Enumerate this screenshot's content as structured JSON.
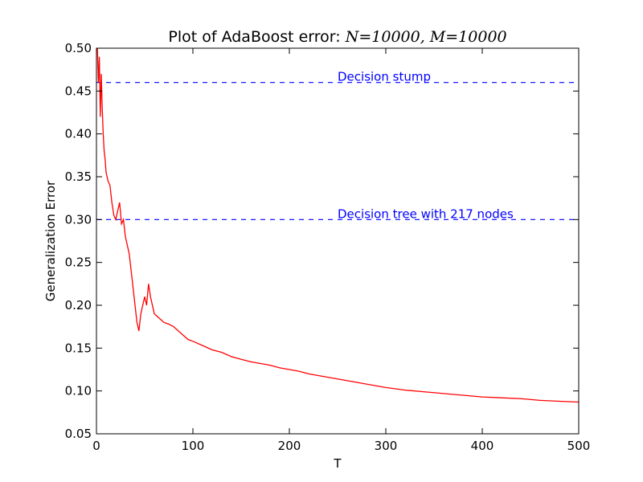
{
  "chart_data": {
    "type": "line",
    "title": "Plot of AdaBoost error: ",
    "title_math": "N=10000, M=10000",
    "xlabel": "T",
    "ylabel": "Generalization Error",
    "xlim": [
      0,
      500
    ],
    "ylim": [
      0.05,
      0.5
    ],
    "xticks": [
      0,
      100,
      200,
      300,
      400,
      500
    ],
    "xtick_labels": [
      "0",
      "100",
      "200",
      "300",
      "400",
      "500"
    ],
    "yticks": [
      0.05,
      0.1,
      0.15,
      0.2,
      0.25,
      0.3,
      0.35,
      0.4,
      0.45,
      0.5
    ],
    "ytick_labels": [
      "0.05",
      "0.10",
      "0.15",
      "0.20",
      "0.25",
      "0.30",
      "0.35",
      "0.40",
      "0.45",
      "0.50"
    ],
    "grid": false,
    "reference_lines": [
      {
        "name": "Decision stump",
        "y": 0.46,
        "color": "#0000ff",
        "style": "dashed",
        "label_x": 250
      },
      {
        "name": "Decision tree with 217 nodes",
        "y": 0.3,
        "color": "#0000ff",
        "style": "dashed",
        "label_x": 250
      }
    ],
    "series": [
      {
        "color": "#ff0000",
        "points": [
          [
            1,
            0.5
          ],
          [
            2,
            0.46
          ],
          [
            3,
            0.49
          ],
          [
            4,
            0.42
          ],
          [
            5,
            0.47
          ],
          [
            6,
            0.43
          ],
          [
            7,
            0.4
          ],
          [
            8,
            0.38
          ],
          [
            9,
            0.37
          ],
          [
            10,
            0.355
          ],
          [
            11,
            0.35
          ],
          [
            12,
            0.345
          ],
          [
            14,
            0.34
          ],
          [
            16,
            0.32
          ],
          [
            18,
            0.305
          ],
          [
            20,
            0.3
          ],
          [
            22,
            0.31
          ],
          [
            24,
            0.32
          ],
          [
            26,
            0.295
          ],
          [
            28,
            0.3
          ],
          [
            30,
            0.28
          ],
          [
            32,
            0.27
          ],
          [
            34,
            0.26
          ],
          [
            36,
            0.24
          ],
          [
            38,
            0.22
          ],
          [
            40,
            0.2
          ],
          [
            42,
            0.18
          ],
          [
            44,
            0.17
          ],
          [
            46,
            0.19
          ],
          [
            48,
            0.2
          ],
          [
            50,
            0.21
          ],
          [
            52,
            0.2
          ],
          [
            54,
            0.225
          ],
          [
            56,
            0.21
          ],
          [
            58,
            0.2
          ],
          [
            60,
            0.19
          ],
          [
            65,
            0.185
          ],
          [
            70,
            0.18
          ],
          [
            75,
            0.178
          ],
          [
            80,
            0.175
          ],
          [
            85,
            0.17
          ],
          [
            90,
            0.165
          ],
          [
            95,
            0.16
          ],
          [
            100,
            0.158
          ],
          [
            110,
            0.153
          ],
          [
            120,
            0.148
          ],
          [
            130,
            0.145
          ],
          [
            140,
            0.14
          ],
          [
            150,
            0.137
          ],
          [
            160,
            0.134
          ],
          [
            170,
            0.132
          ],
          [
            180,
            0.13
          ],
          [
            190,
            0.127
          ],
          [
            200,
            0.125
          ],
          [
            210,
            0.123
          ],
          [
            220,
            0.12
          ],
          [
            230,
            0.118
          ],
          [
            240,
            0.116
          ],
          [
            250,
            0.114
          ],
          [
            260,
            0.112
          ],
          [
            270,
            0.11
          ],
          [
            280,
            0.108
          ],
          [
            290,
            0.106
          ],
          [
            300,
            0.104
          ],
          [
            320,
            0.101
          ],
          [
            340,
            0.099
          ],
          [
            360,
            0.097
          ],
          [
            380,
            0.095
          ],
          [
            400,
            0.093
          ],
          [
            420,
            0.092
          ],
          [
            440,
            0.091
          ],
          [
            460,
            0.089
          ],
          [
            480,
            0.088
          ],
          [
            500,
            0.087
          ]
        ]
      }
    ]
  }
}
